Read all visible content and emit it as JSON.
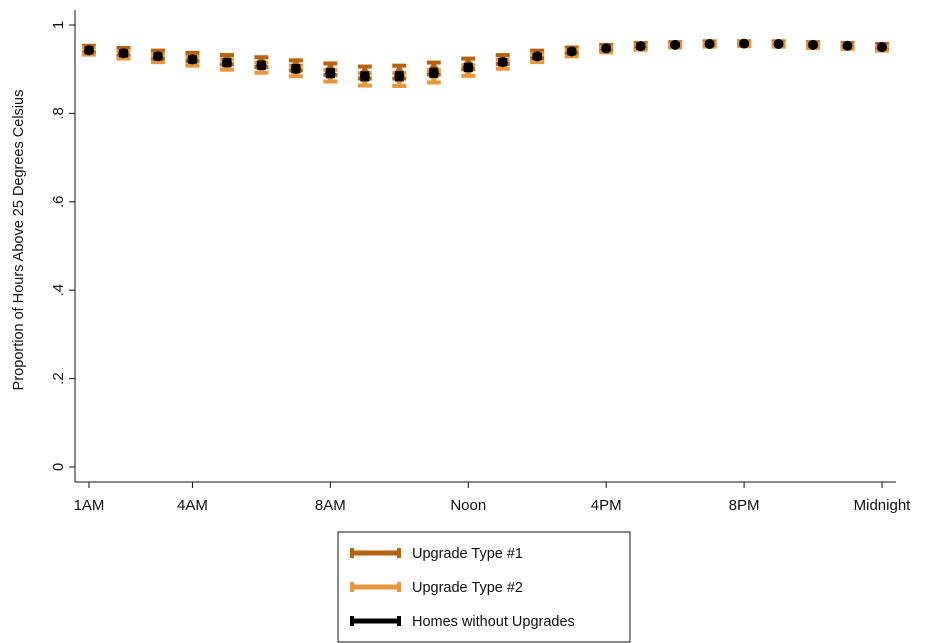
{
  "chart_data": {
    "type": "scatter",
    "ylabel": "Proportion of Hours Above 25 Degrees Celsius",
    "xlabel": "",
    "ylim": [
      0,
      1
    ],
    "yticks": [
      {
        "value": 0,
        "label": "0"
      },
      {
        "value": 0.2,
        "label": ".2"
      },
      {
        "value": 0.4,
        "label": ".4"
      },
      {
        "value": 0.6,
        "label": ".6"
      },
      {
        "value": 0.8,
        "label": ".8"
      },
      {
        "value": 1,
        "label": "1"
      }
    ],
    "xticks": [
      {
        "hour": 1,
        "label": "1AM"
      },
      {
        "hour": 4,
        "label": "4AM"
      },
      {
        "hour": 8,
        "label": "8AM"
      },
      {
        "hour": 12,
        "label": "Noon"
      },
      {
        "hour": 16,
        "label": "4PM"
      },
      {
        "hour": 20,
        "label": "8PM"
      },
      {
        "hour": 24,
        "label": "Midnight"
      }
    ],
    "x": [
      1,
      2,
      3,
      4,
      5,
      6,
      7,
      8,
      9,
      10,
      11,
      12,
      13,
      14,
      15,
      16,
      17,
      18,
      19,
      20,
      21,
      22,
      23,
      24
    ],
    "series": [
      {
        "name": "Upgrade Type #1",
        "color": "#b8610e",
        "values": [
          0.946,
          0.94,
          0.934,
          0.928,
          0.922,
          0.916,
          0.909,
          0.9,
          0.893,
          0.894,
          0.902,
          0.912,
          0.922,
          0.934,
          0.943,
          0.95,
          0.954,
          0.957,
          0.959,
          0.959,
          0.959,
          0.957,
          0.955,
          0.952
        ],
        "lower": [
          0.938,
          0.931,
          0.924,
          0.918,
          0.911,
          0.905,
          0.897,
          0.887,
          0.879,
          0.879,
          0.888,
          0.9,
          0.912,
          0.925,
          0.936,
          0.944,
          0.949,
          0.952,
          0.954,
          0.955,
          0.954,
          0.952,
          0.95,
          0.947
        ],
        "upper": [
          0.953,
          0.948,
          0.942,
          0.937,
          0.932,
          0.927,
          0.92,
          0.913,
          0.906,
          0.908,
          0.915,
          0.924,
          0.932,
          0.942,
          0.949,
          0.955,
          0.959,
          0.961,
          0.963,
          0.963,
          0.963,
          0.961,
          0.959,
          0.957
        ]
      },
      {
        "name": "Upgrade Type #2",
        "color": "#e8973c",
        "values": [
          0.941,
          0.933,
          0.926,
          0.918,
          0.911,
          0.904,
          0.896,
          0.885,
          0.877,
          0.876,
          0.884,
          0.897,
          0.912,
          0.926,
          0.937,
          0.944,
          0.95,
          0.954,
          0.956,
          0.957,
          0.956,
          0.953,
          0.951,
          0.948
        ],
        "lower": [
          0.933,
          0.924,
          0.916,
          0.908,
          0.899,
          0.892,
          0.884,
          0.872,
          0.863,
          0.862,
          0.87,
          0.885,
          0.901,
          0.916,
          0.929,
          0.938,
          0.944,
          0.949,
          0.951,
          0.952,
          0.951,
          0.948,
          0.946,
          0.942
        ],
        "upper": [
          0.949,
          0.941,
          0.935,
          0.928,
          0.922,
          0.915,
          0.908,
          0.898,
          0.891,
          0.891,
          0.898,
          0.909,
          0.922,
          0.935,
          0.944,
          0.95,
          0.955,
          0.958,
          0.96,
          0.961,
          0.96,
          0.958,
          0.956,
          0.953
        ]
      },
      {
        "name": "Homes without Upgrades",
        "color": "#000000",
        "values": [
          0.943,
          0.936,
          0.929,
          0.922,
          0.915,
          0.909,
          0.901,
          0.891,
          0.884,
          0.884,
          0.892,
          0.904,
          0.916,
          0.929,
          0.94,
          0.947,
          0.952,
          0.955,
          0.957,
          0.958,
          0.957,
          0.955,
          0.953,
          0.95
        ],
        "lower": [
          0.938,
          0.931,
          0.924,
          0.917,
          0.909,
          0.903,
          0.895,
          0.884,
          0.877,
          0.877,
          0.885,
          0.898,
          0.911,
          0.925,
          0.936,
          0.944,
          0.949,
          0.953,
          0.955,
          0.956,
          0.955,
          0.953,
          0.951,
          0.947
        ],
        "upper": [
          0.948,
          0.941,
          0.934,
          0.927,
          0.921,
          0.915,
          0.907,
          0.898,
          0.891,
          0.891,
          0.899,
          0.91,
          0.921,
          0.933,
          0.944,
          0.95,
          0.955,
          0.957,
          0.959,
          0.96,
          0.959,
          0.957,
          0.955,
          0.953
        ]
      }
    ],
    "legend": {
      "position": "bottom-center",
      "entries": [
        "Upgrade Type #1",
        "Upgrade Type #2",
        "Homes without Upgrades"
      ]
    },
    "grid": false
  }
}
